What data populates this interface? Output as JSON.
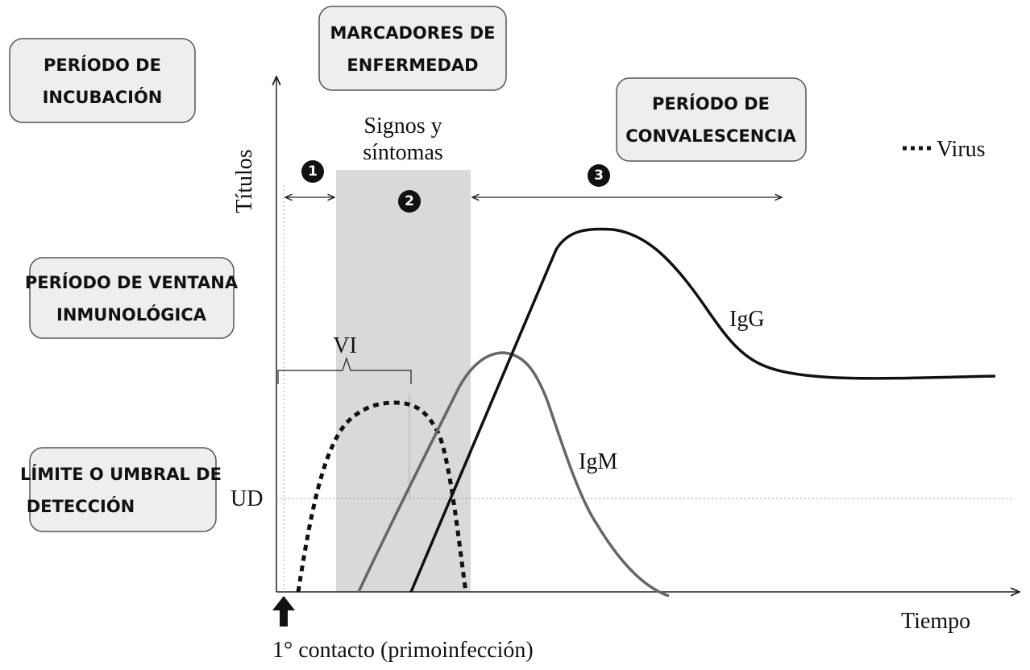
{
  "boxes": {
    "incubacion": {
      "lines": [
        "PERÍODO DE",
        "INCUBACIÓN"
      ]
    },
    "marcadores": {
      "lines": [
        "MARCADORES DE",
        "ENFERMEDAD"
      ]
    },
    "convalescencia": {
      "lines": [
        "PERÍODO DE",
        "CONVALESCENCIA"
      ]
    },
    "ventana": {
      "lines": [
        "PERÍODO DE VENTANA",
        "INMUNOLÓGICA"
      ]
    },
    "umbral": {
      "lines": [
        "LÍMITE O UMBRAL DE",
        "DETECCIÓN"
      ]
    }
  },
  "axes": {
    "y_label": "Títulos",
    "x_label": "Tiempo",
    "threshold": "UD"
  },
  "signs": {
    "lines": [
      "Signos y",
      "síntomas"
    ]
  },
  "phases": [
    "1",
    "2",
    "3"
  ],
  "labels": {
    "vi": "VI",
    "igg": "IgG",
    "igm": "IgM",
    "contact": "1° contacto (primoinfección)"
  },
  "legend": {
    "virus": "Virus"
  }
}
